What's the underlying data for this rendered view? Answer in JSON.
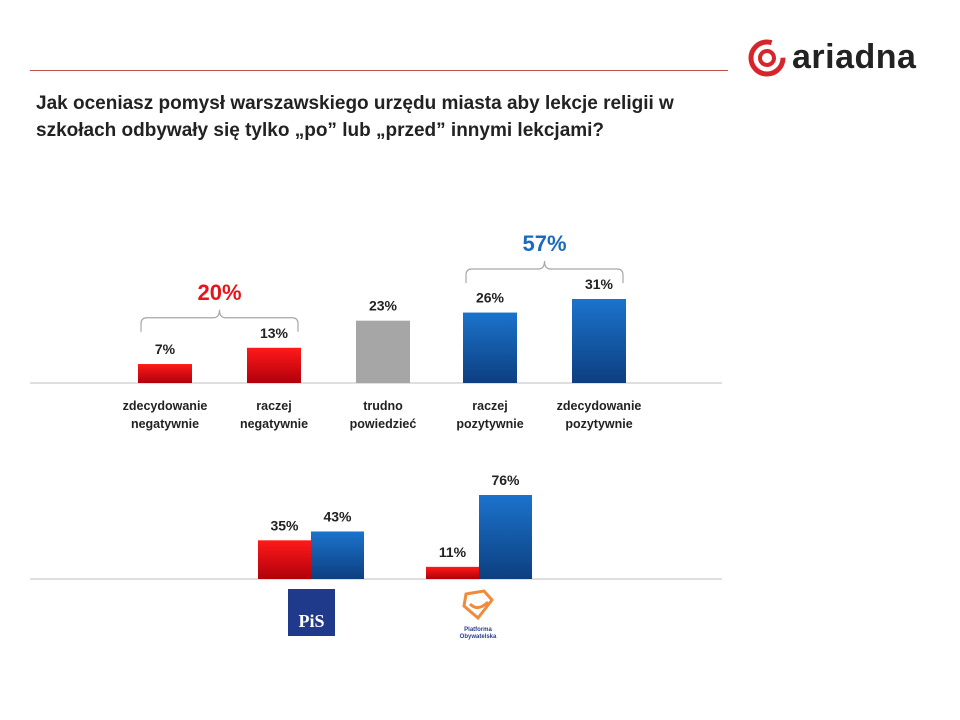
{
  "title": "Jak oceniasz pomysł warszawskiego urzędu miasta aby lekcje religii w szkołach odbywały się tylko „po” lub „przed” innymi lekcjami?",
  "logo": {
    "text": "ariadna",
    "color": "#d7262b"
  },
  "colors": {
    "negative": "#e8141b",
    "neutral": "#a6a6a6",
    "positive": "#1a6bc0",
    "axis": "#bfbfbf"
  },
  "chart_data": [
    {
      "type": "bar",
      "title": "",
      "categories": [
        [
          "zdecydowanie",
          "negatywnie"
        ],
        [
          "raczej",
          "negatywnie"
        ],
        [
          "trudno",
          "powiedzieć"
        ],
        [
          "raczej",
          "pozytywnie"
        ],
        [
          "zdecydowanie",
          "pozytywnie"
        ]
      ],
      "values": [
        7,
        13,
        23,
        26,
        31
      ],
      "labels": [
        "7%",
        "13%",
        "23%",
        "26%",
        "31%"
      ],
      "groups": [
        "negative",
        "negative",
        "neutral",
        "positive",
        "positive"
      ],
      "annotations": [
        {
          "text": "20%",
          "spans": [
            0,
            1
          ],
          "color": "negative"
        },
        {
          "text": "57%",
          "spans": [
            3,
            4
          ],
          "color": "positive"
        }
      ],
      "ylim": [
        0,
        31
      ]
    },
    {
      "type": "bar",
      "categories": [
        "PiS",
        "Platforma Obywatelska"
      ],
      "series": [
        {
          "name": "negatywnie",
          "color": "negative",
          "values": [
            35,
            11
          ],
          "labels": [
            "35%",
            "11%"
          ]
        },
        {
          "name": "pozytywnie",
          "color": "positive",
          "values": [
            43,
            76
          ],
          "labels": [
            "43%",
            "76%"
          ]
        }
      ],
      "ylim": [
        0,
        76
      ]
    }
  ],
  "party_logos": {
    "pis": "PiS",
    "po": "Platforma Obywatelska"
  }
}
